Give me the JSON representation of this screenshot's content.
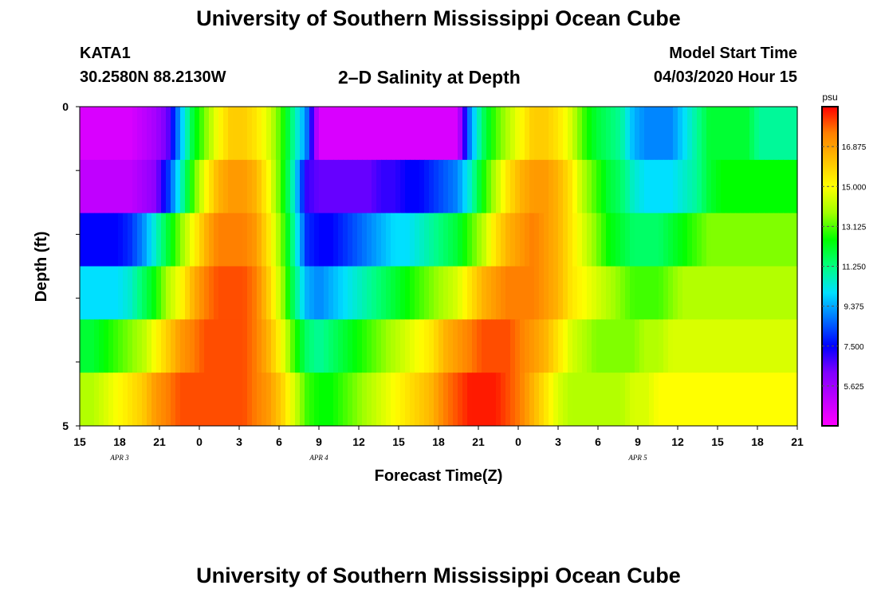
{
  "header": {
    "title": "University of Southern Mississippi Ocean Cube",
    "station": "KATA1",
    "coordinates": "30.2580N 88.2130W",
    "plot_title": "2–D Salinity at Depth",
    "model_start_label": "Model Start Time",
    "model_start_value": "04/03/2020 Hour 15"
  },
  "footer": {
    "title": "University of Southern Mississippi Ocean Cube"
  },
  "chart_data": {
    "type": "heatmap",
    "title": "2–D Salinity at Depth",
    "xlabel": "Forecast Time(Z)",
    "ylabel": "Depth (ft)",
    "y_ticks": [
      "0",
      "5"
    ],
    "ylim": [
      0,
      5
    ],
    "x_tick_labels": [
      "15",
      "18",
      "21",
      "0",
      "3",
      "6",
      "9",
      "12",
      "15",
      "18",
      "21",
      "0",
      "3",
      "6",
      "9",
      "12",
      "15",
      "18",
      "21"
    ],
    "x_date_labels": [
      {
        "label": "APR 3",
        "tick_index": 1
      },
      {
        "label": "APR 4",
        "tick_index": 6
      },
      {
        "label": "APR 5",
        "tick_index": 14
      }
    ],
    "colorbar": {
      "unit": "psu",
      "tick_labels": [
        "16.875",
        "15.000",
        "13.125",
        "11.250",
        "9.375",
        "7.500",
        "5.625"
      ],
      "min": 3.75,
      "max": 18.75,
      "colors": [
        "#ff00ff",
        "#c000ff",
        "#8000ff",
        "#0000ff",
        "#0070ff",
        "#00e0ff",
        "#00ff80",
        "#00ff00",
        "#a0ff00",
        "#ffff00",
        "#ffc000",
        "#ff8000",
        "#ff0000"
      ]
    },
    "x_hours": [
      0,
      1,
      2,
      3,
      4,
      5,
      6,
      7,
      8,
      9,
      10,
      11,
      12,
      13,
      14,
      15,
      16,
      17,
      18,
      19,
      20,
      21,
      22,
      23,
      24,
      25,
      26,
      27,
      28,
      29,
      30,
      31,
      32,
      33,
      34,
      35,
      36,
      37,
      38,
      39,
      40,
      41,
      42,
      43,
      44,
      45,
      46,
      47,
      48,
      49,
      50,
      51,
      52,
      53,
      54
    ],
    "depth_rows": [
      {
        "depth": 0,
        "values": [
          4.5,
          4.5,
          4.5,
          4.5,
          4.5,
          5.0,
          5.5,
          6.5,
          9.5,
          12.0,
          13.5,
          15.0,
          16.0,
          16.0,
          15.5,
          14.5,
          13.0,
          11.0,
          9.0,
          4.5,
          4.5,
          4.5,
          4.5,
          4.5,
          4.5,
          4.5,
          4.5,
          4.5,
          4.5,
          4.5,
          4.5,
          9.0,
          11.5,
          13.0,
          14.0,
          15.0,
          16.0,
          16.0,
          15.5,
          14.5,
          13.0,
          12.0,
          11.5,
          11.0,
          9.5,
          9.0,
          9.0,
          9.0,
          10.0,
          11.0,
          12.0,
          12.0,
          12.0,
          12.0,
          11.0
        ]
      },
      {
        "depth": 1,
        "values": [
          5.0,
          5.0,
          5.0,
          5.0,
          5.0,
          5.5,
          6.0,
          8.0,
          10.5,
          13.0,
          15.0,
          16.5,
          17.0,
          17.0,
          16.5,
          15.0,
          13.0,
          10.5,
          7.0,
          6.5,
          6.5,
          6.5,
          6.5,
          6.5,
          7.0,
          7.0,
          7.5,
          7.5,
          8.0,
          8.5,
          9.0,
          10.5,
          12.5,
          14.0,
          15.5,
          16.5,
          17.0,
          17.0,
          16.5,
          15.5,
          14.0,
          13.0,
          12.0,
          11.5,
          10.5,
          10.0,
          10.0,
          10.0,
          10.5,
          11.0,
          12.0,
          12.5,
          12.5,
          12.5,
          12.5
        ]
      },
      {
        "depth": 2,
        "values": [
          7.5,
          7.5,
          7.5,
          7.5,
          8.0,
          9.0,
          10.5,
          12.0,
          13.5,
          15.0,
          16.5,
          17.5,
          17.5,
          17.5,
          17.0,
          15.5,
          13.5,
          11.0,
          8.0,
          7.5,
          7.5,
          8.0,
          8.5,
          9.0,
          9.5,
          10.0,
          10.0,
          10.5,
          11.0,
          11.5,
          12.0,
          13.0,
          14.0,
          15.5,
          16.5,
          17.0,
          17.5,
          17.0,
          16.5,
          15.5,
          14.5,
          13.5,
          12.5,
          12.0,
          11.5,
          11.5,
          11.5,
          12.0,
          12.5,
          13.0,
          13.5,
          13.5,
          13.5,
          13.5,
          13.5
        ]
      },
      {
        "depth": 3,
        "values": [
          10.0,
          10.0,
          10.0,
          10.0,
          10.5,
          11.5,
          12.5,
          14.0,
          15.0,
          16.5,
          17.5,
          18.0,
          18.0,
          18.0,
          17.5,
          16.0,
          14.0,
          11.5,
          9.5,
          9.0,
          9.5,
          10.0,
          10.5,
          11.0,
          11.5,
          12.0,
          12.5,
          13.0,
          13.5,
          14.0,
          14.5,
          15.5,
          16.5,
          17.0,
          17.5,
          17.5,
          17.5,
          17.0,
          16.5,
          15.5,
          15.0,
          14.5,
          14.0,
          13.5,
          13.0,
          13.0,
          13.0,
          13.5,
          14.0,
          14.0,
          14.0,
          14.0,
          14.0,
          14.0,
          14.0
        ]
      },
      {
        "depth": 4,
        "values": [
          12.0,
          12.0,
          12.5,
          13.0,
          13.5,
          14.0,
          15.0,
          16.0,
          17.0,
          17.5,
          18.0,
          18.0,
          18.0,
          18.0,
          17.5,
          16.5,
          15.0,
          13.0,
          11.5,
          11.0,
          11.5,
          12.0,
          12.5,
          13.0,
          13.5,
          14.0,
          14.5,
          15.0,
          15.5,
          16.5,
          17.0,
          17.5,
          18.0,
          18.0,
          18.0,
          17.5,
          17.0,
          16.5,
          15.5,
          14.5,
          14.0,
          13.5,
          13.5,
          13.5,
          13.5,
          14.0,
          14.0,
          14.5,
          14.5,
          14.5,
          14.5,
          14.5,
          14.5,
          14.5,
          14.5
        ]
      },
      {
        "depth": 5,
        "values": [
          14.0,
          14.0,
          14.5,
          15.0,
          15.5,
          16.0,
          17.0,
          17.5,
          18.0,
          18.0,
          18.0,
          18.0,
          18.0,
          18.0,
          17.5,
          17.0,
          16.0,
          14.5,
          13.0,
          12.5,
          12.5,
          13.0,
          13.5,
          14.0,
          14.5,
          15.0,
          15.5,
          16.0,
          16.5,
          17.5,
          18.0,
          18.5,
          18.5,
          18.5,
          18.0,
          17.5,
          16.5,
          15.5,
          14.5,
          14.0,
          14.0,
          14.0,
          14.0,
          14.0,
          14.5,
          14.5,
          15.0,
          15.0,
          15.0,
          15.0,
          15.0,
          15.0,
          15.0,
          15.0,
          15.0
        ]
      }
    ],
    "grid": false,
    "legend": "colorbar right"
  }
}
